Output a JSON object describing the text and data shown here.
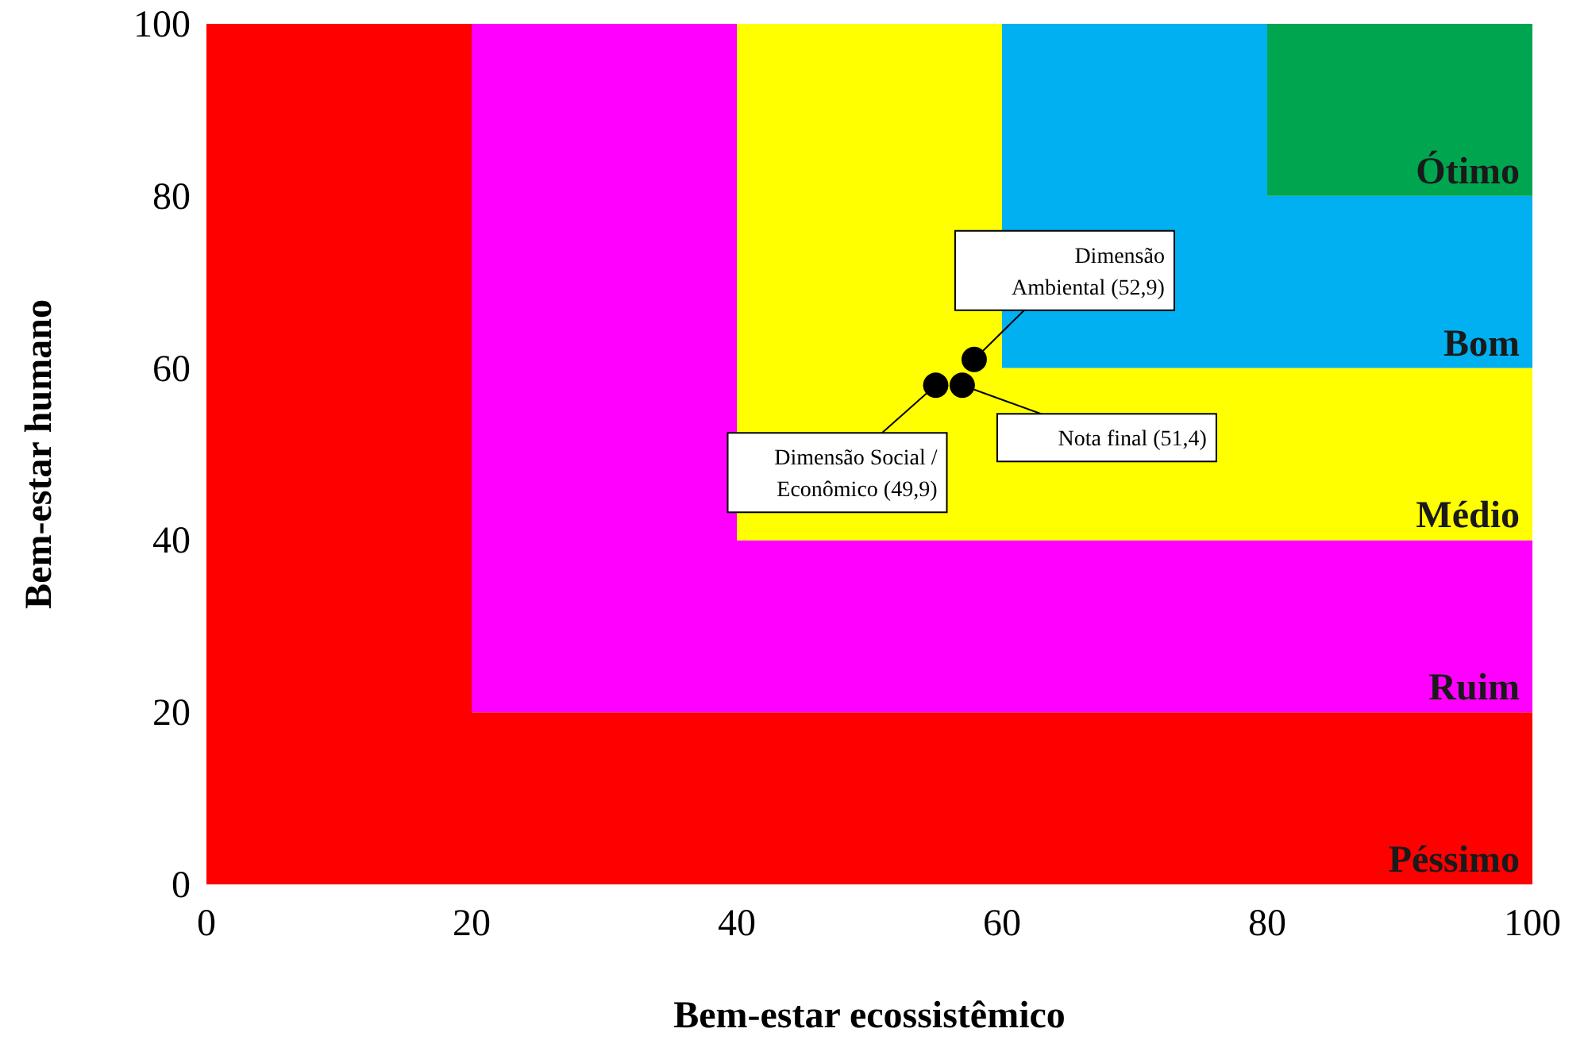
{
  "chart_data": {
    "type": "scatter",
    "xlabel": "Bem-estar ecossistêmico",
    "ylabel": "Bem-estar humano",
    "xlim": [
      0,
      100
    ],
    "ylim": [
      0,
      100
    ],
    "xticks": [
      0,
      20,
      40,
      60,
      80,
      100
    ],
    "yticks": [
      0,
      20,
      40,
      60,
      80,
      100
    ],
    "grid": false,
    "legend": false,
    "stacked": true,
    "series": [
      {
        "type": "area",
        "name": "Péssimo",
        "color": "#ff0000",
        "x": [
          0,
          20,
          20,
          40,
          40,
          60,
          60,
          80,
          80,
          100
        ],
        "values": [
          100,
          100,
          20,
          20,
          20,
          20,
          20,
          20,
          20,
          20
        ]
      },
      {
        "type": "area",
        "name": "Ruim",
        "color": "#ff00ff",
        "x": [
          0,
          20,
          20,
          40,
          40,
          60,
          60,
          80,
          80,
          100
        ],
        "values": [
          0,
          0,
          80,
          80,
          20,
          20,
          20,
          20,
          20,
          20
        ]
      },
      {
        "type": "area",
        "name": "Médio",
        "color": "#ffff00",
        "x": [
          0,
          20,
          20,
          40,
          40,
          60,
          60,
          80,
          80,
          100
        ],
        "values": [
          0,
          0,
          0,
          0,
          60,
          60,
          20,
          20,
          20,
          20
        ]
      },
      {
        "type": "area",
        "name": "Bom",
        "color": "#00b0f0",
        "x": [
          0,
          20,
          20,
          40,
          40,
          60,
          60,
          80,
          80,
          100
        ],
        "values": [
          0,
          0,
          0,
          0,
          0,
          0,
          40,
          40,
          20,
          20
        ]
      },
      {
        "type": "area",
        "name": "Ótimo",
        "color": "#00a550",
        "x": [
          0,
          20,
          20,
          40,
          40,
          60,
          60,
          80,
          80,
          100
        ],
        "values": [
          0,
          0,
          0,
          0,
          0,
          0,
          0,
          0,
          20,
          20
        ]
      },
      {
        "color": "#000000",
        "marker": "circle",
        "x": [
          55,
          57,
          57.9
        ],
        "values": [
          58,
          58,
          61
        ]
      }
    ],
    "annotations": [
      {
        "text": "Dimensão Social / Econômico (49,9)",
        "x": 55,
        "y": 58
      },
      {
        "text": "Nota final (51,4)",
        "x": 57,
        "y": 58
      },
      {
        "text": "Dimensão Ambiental (52,9)",
        "x": 57.9,
        "y": 61
      }
    ]
  }
}
